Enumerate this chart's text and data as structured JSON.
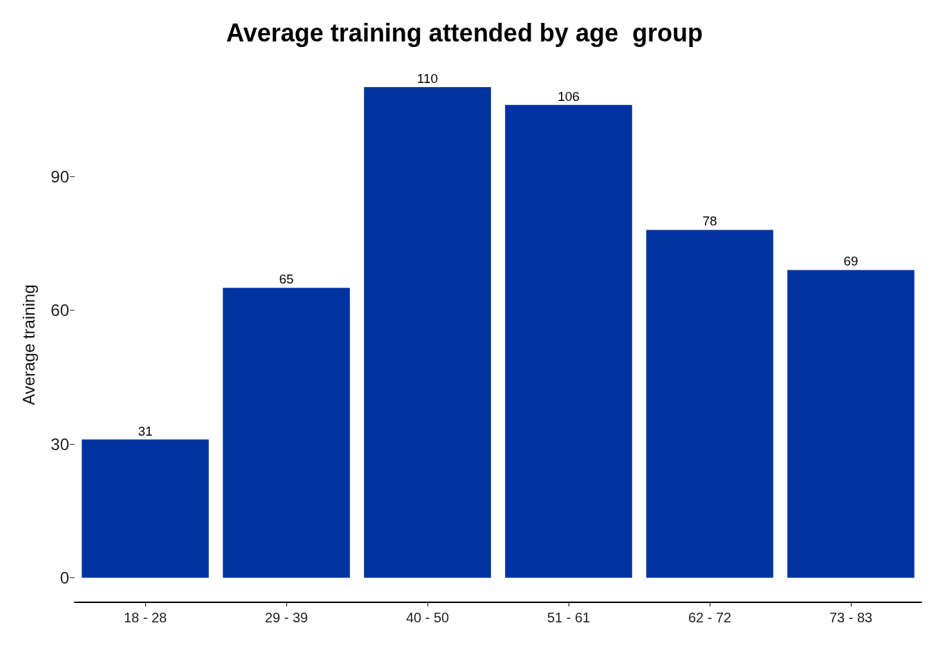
{
  "chart_data": {
    "type": "bar",
    "title": "Average training attended by age  group",
    "ylabel": "Average training",
    "categories": [
      "18 - 28",
      "29 - 39",
      "40 - 50",
      "51 - 61",
      "62 - 72",
      "73 - 83"
    ],
    "values": [
      31,
      65,
      110,
      106,
      78,
      69
    ],
    "color": "#0033a0",
    "ylim": [
      -5.5,
      110
    ],
    "yticks": [
      0,
      30,
      60,
      90
    ],
    "grid": false,
    "data_labels": true
  }
}
